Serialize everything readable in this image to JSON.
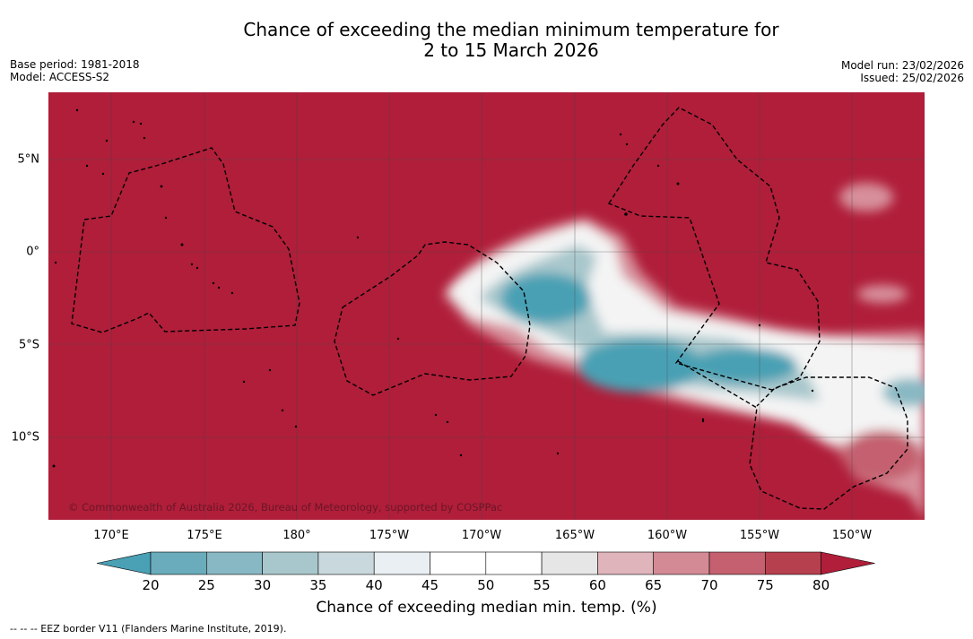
{
  "title": {
    "line1": "Chance of exceeding the median minimum temperature for",
    "line2": "2 to 15 March 2026"
  },
  "meta_left": {
    "base_period": "Base period: 1981-2018",
    "model": "Model: ACCESS-S2"
  },
  "meta_right": {
    "model_run": "Model run: 23/02/2026",
    "issued": "Issued: 25/02/2026"
  },
  "map": {
    "copyright": "© Commonwealth of Australia 2026, Bureau of Meteorology, supported by COSPPac",
    "longitude_labels": [
      "170°E",
      "175°E",
      "180°",
      "175°W",
      "170°W",
      "165°W",
      "160°W",
      "155°W",
      "150°W"
    ],
    "latitude_labels": [
      "5°N",
      "0°",
      "5°S",
      "10°S"
    ],
    "colors": {
      "hot_80": "#b01e3a",
      "cold_20": "#4aa0b4",
      "grid": "#444444",
      "eez": "#000000"
    }
  },
  "colorbar": {
    "ticks": [
      "20",
      "25",
      "30",
      "35",
      "40",
      "45",
      "50",
      "55",
      "60",
      "65",
      "70",
      "75",
      "80"
    ],
    "colors": [
      "#4aa0b4",
      "#6aacbb",
      "#88b8c3",
      "#a8c7cc",
      "#c9d8dd",
      "#e9eff2",
      "#ffffff",
      "#ffffff",
      "#e6e6e6",
      "#dfb4bb",
      "#d38a94",
      "#c4606f",
      "#b7404f",
      "#b01e3a"
    ],
    "label": "Chance of exceeding median min. temp. (%)"
  },
  "footer": "-- -- -- EEZ border V11 (Flanders Marine Institute, 2019)."
}
